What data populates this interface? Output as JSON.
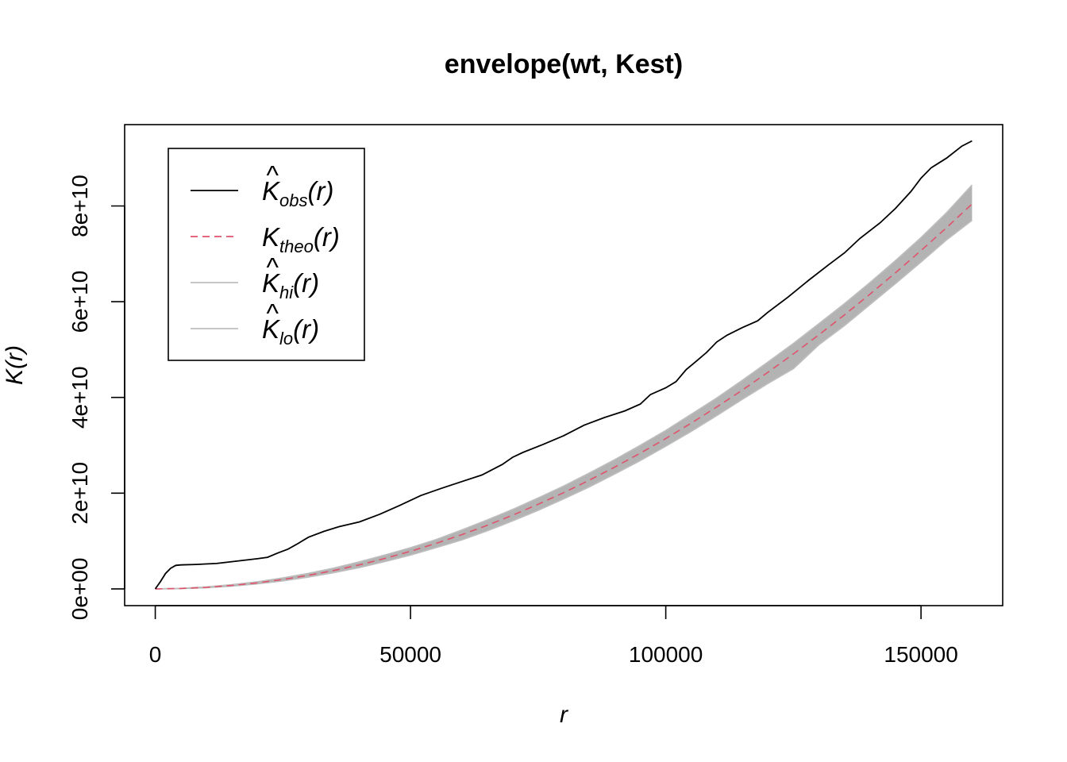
{
  "chart_data": {
    "type": "line",
    "title": "envelope(wt, Kest)",
    "xlabel": "r",
    "ylabel": "K(r)",
    "xlim": [
      -6000,
      166000
    ],
    "ylim": [
      -3500000000.0,
      97000000000.0
    ],
    "x_ticks": [
      0,
      50000,
      100000,
      150000
    ],
    "x_tick_labels": [
      "0",
      "50000",
      "100000",
      "150000"
    ],
    "y_ticks": [
      0,
      20000000000.0,
      40000000000.0,
      60000000000.0,
      80000000000.0
    ],
    "y_tick_labels": [
      "0e+00",
      "2e+10",
      "4e+10",
      "6e+10",
      "8e+10"
    ],
    "legend_position": "top-left",
    "grid": false,
    "legend": [
      {
        "key": "obs",
        "hat": "^",
        "base": "K",
        "sub": "obs",
        "arg": "(r)",
        "color": "#000000",
        "style": "solid"
      },
      {
        "key": "theo",
        "hat": "",
        "base": "K",
        "sub": "theo",
        "arg": "(r)",
        "color": "#DF536B",
        "style": "dashed"
      },
      {
        "key": "hi",
        "hat": "^",
        "base": "K",
        "sub": "hi",
        "arg": "(r)",
        "color": "#BEBEBE",
        "style": "solid"
      },
      {
        "key": "lo",
        "hat": "^",
        "base": "K",
        "sub": "lo",
        "arg": "(r)",
        "color": "#BEBEBE",
        "style": "solid"
      }
    ],
    "envelope_fill_color": "#B3B3B3",
    "series": [
      {
        "key": "obs",
        "x": [
          0,
          1000,
          2000,
          3000,
          4000,
          5000,
          8000,
          12000,
          16000,
          20000,
          22000,
          24000,
          26000,
          28000,
          30000,
          33000,
          36000,
          40000,
          44000,
          48000,
          52000,
          56000,
          60000,
          64000,
          68000,
          70000,
          72000,
          76000,
          80000,
          84000,
          88000,
          92000,
          95000,
          97000,
          100000,
          102000,
          104000,
          106000,
          108000,
          110000,
          112000,
          115000,
          118000,
          120000,
          124000,
          128000,
          132000,
          135000,
          138000,
          142000,
          145000,
          148000,
          150000,
          152000,
          155000,
          158000,
          160000
        ],
        "values": [
          0,
          1500000000.0,
          3200000000.0,
          4300000000.0,
          4900000000.0,
          5000000000.0,
          5100000000.0,
          5300000000.0,
          5800000000.0,
          6300000000.0,
          6600000000.0,
          7500000000.0,
          8300000000.0,
          9500000000.0,
          10800000000.0,
          12000000000.0,
          13000000000.0,
          14000000000.0,
          15600000000.0,
          17500000000.0,
          19500000000.0,
          21000000000.0,
          22400000000.0,
          23800000000.0,
          26000000000.0,
          27500000000.0,
          28500000000.0,
          30200000000.0,
          32000000000.0,
          34200000000.0,
          35800000000.0,
          37200000000.0,
          38600000000.0,
          40600000000.0,
          42000000000.0,
          43300000000.0,
          45800000000.0,
          47600000000.0,
          49400000000.0,
          51600000000.0,
          53000000000.0,
          54600000000.0,
          56000000000.0,
          57800000000.0,
          61000000000.0,
          64500000000.0,
          67800000000.0,
          70200000000.0,
          73200000000.0,
          76500000000.0,
          79500000000.0,
          83000000000.0,
          85800000000.0,
          88000000000.0,
          90000000000.0,
          92500000000.0,
          93600000000.0
        ]
      },
      {
        "key": "theo",
        "x": [
          0,
          5000,
          10000,
          15000,
          20000,
          25000,
          30000,
          35000,
          40000,
          45000,
          50000,
          55000,
          60000,
          65000,
          70000,
          75000,
          80000,
          85000,
          90000,
          95000,
          100000,
          105000,
          110000,
          115000,
          120000,
          125000,
          130000,
          135000,
          140000,
          145000,
          150000,
          155000,
          160000
        ],
        "values": [
          0,
          79000000.0,
          314000000.0,
          707000000.0,
          1257000000.0,
          1963000000.0,
          2827000000.0,
          3848000000.0,
          5027000000.0,
          6362000000.0,
          7854000000.0,
          9503000000.0,
          11310000000.0,
          13273000000.0,
          15394000000.0,
          17671000000.0,
          20106000000.0,
          22698000000.0,
          25447000000.0,
          28353000000.0,
          31416000000.0,
          34636000000.0,
          38013000000.0,
          41548000000.0,
          45239000000.0,
          49087000000.0,
          53093000000.0,
          57256000000.0,
          61575000000.0,
          66052000000.0,
          70686000000.0,
          75477000000.0,
          80425000000.0
        ]
      },
      {
        "key": "hi",
        "x": [
          0,
          5000,
          10000,
          15000,
          20000,
          25000,
          30000,
          35000,
          40000,
          45000,
          50000,
          55000,
          60000,
          65000,
          70000,
          75000,
          80000,
          85000,
          90000,
          95000,
          100000,
          105000,
          110000,
          115000,
          120000,
          125000,
          130000,
          135000,
          140000,
          145000,
          150000,
          155000,
          160000
        ],
        "values": [
          0,
          120000000.0,
          420000000.0,
          880000000.0,
          1500000000.0,
          2300000000.0,
          3250000000.0,
          4350000000.0,
          5650000000.0,
          7100000000.0,
          8600000000.0,
          10300000000.0,
          12300000000.0,
          14400000000.0,
          16600000000.0,
          19000000000.0,
          21500000000.0,
          24200000000.0,
          27000000000.0,
          30000000000.0,
          33100000000.0,
          36500000000.0,
          39900000000.0,
          43600000000.0,
          47400000000.0,
          51300000000.0,
          55400000000.0,
          59600000000.0,
          64000000000.0,
          68600000000.0,
          73400000000.0,
          78600000000.0,
          84400000000.0
        ]
      },
      {
        "key": "lo",
        "x": [
          0,
          5000,
          10000,
          15000,
          20000,
          25000,
          30000,
          35000,
          40000,
          45000,
          50000,
          55000,
          60000,
          65000,
          70000,
          75000,
          80000,
          85000,
          90000,
          95000,
          100000,
          105000,
          110000,
          115000,
          120000,
          125000,
          130000,
          135000,
          140000,
          145000,
          150000,
          155000,
          160000
        ],
        "values": [
          0,
          50000000.0,
          230000000.0,
          560000000.0,
          1050000000.0,
          1680000000.0,
          2450000000.0,
          3400000000.0,
          4450000000.0,
          5700000000.0,
          7050000000.0,
          8600000000.0,
          10200000000.0,
          12100000000.0,
          14200000000.0,
          16400000000.0,
          18800000000.0,
          21300000000.0,
          24000000000.0,
          26800000000.0,
          29800000000.0,
          32900000000.0,
          36200000000.0,
          39600000000.0,
          42900000000.0,
          46000000000.0,
          51000000000.0,
          55000000000.0,
          59400000000.0,
          63800000000.0,
          68300000000.0,
          72900000000.0,
          77000000000.0
        ]
      }
    ]
  }
}
